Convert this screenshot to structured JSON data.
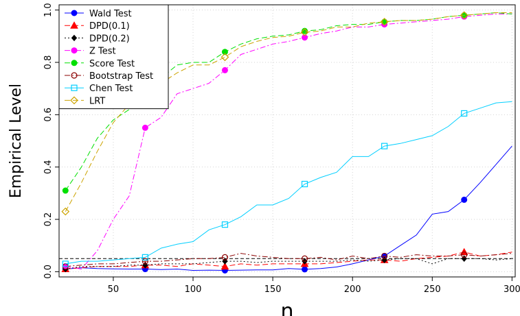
{
  "chart_data": {
    "type": "line",
    "xlabel": "n",
    "ylabel": "Empirical Level",
    "xlim": [
      16,
      302
    ],
    "ylim": [
      -0.02,
      1.02
    ],
    "xticks": [
      50,
      100,
      150,
      200,
      250,
      300
    ],
    "yticks": [
      0.0,
      0.2,
      0.4,
      0.6,
      0.8,
      1.0
    ],
    "ytick_labels": [
      "0.0",
      "0.2",
      "0.4",
      "0.6",
      "0.8",
      "1.0"
    ],
    "grid": true,
    "reference_line": 0.05,
    "legend_position": "top-left",
    "x": [
      20,
      30,
      40,
      50,
      60,
      70,
      80,
      90,
      100,
      110,
      120,
      130,
      140,
      150,
      160,
      170,
      180,
      190,
      200,
      210,
      220,
      230,
      240,
      250,
      260,
      270,
      280,
      290,
      300
    ],
    "marker_x": [
      20,
      70,
      120,
      170,
      220,
      270
    ],
    "series": [
      {
        "name": "Wald Test",
        "color": "#0000ff",
        "dash": "solid",
        "marker": "filled-circle",
        "values": [
          0.01,
          0.015,
          0.012,
          0.011,
          0.01,
          0.01,
          0.008,
          0.01,
          0.005,
          0.006,
          0.005,
          0.006,
          0.007,
          0.007,
          0.012,
          0.009,
          0.012,
          0.018,
          0.03,
          0.045,
          0.06,
          0.1,
          0.14,
          0.22,
          0.23,
          0.275,
          0.34,
          0.41,
          0.48
        ]
      },
      {
        "name": "DPD(0.1)",
        "color": "#ff0000",
        "dash": "8,4",
        "marker": "filled-triangle",
        "values": [
          0.01,
          0.015,
          0.02,
          0.02,
          0.02,
          0.025,
          0.025,
          0.02,
          0.03,
          0.025,
          0.02,
          0.03,
          0.025,
          0.03,
          0.03,
          0.03,
          0.03,
          0.035,
          0.04,
          0.045,
          0.045,
          0.04,
          0.05,
          0.055,
          0.06,
          0.075,
          0.06,
          0.065,
          0.075
        ]
      },
      {
        "name": "DPD(0.2)",
        "color": "#000000",
        "dash": "2,3",
        "marker": "filled-diamond",
        "values": [
          0.01,
          0.02,
          0.02,
          0.02,
          0.025,
          0.025,
          0.03,
          0.03,
          0.03,
          0.035,
          0.04,
          0.04,
          0.035,
          0.04,
          0.04,
          0.04,
          0.04,
          0.04,
          0.045,
          0.04,
          0.045,
          0.05,
          0.05,
          0.03,
          0.05,
          0.05,
          0.05,
          0.045,
          0.05
        ]
      },
      {
        "name": "Z Test",
        "color": "#ff00ff",
        "dash": "8,3,2,3",
        "marker": "filled-circle",
        "values": [
          0.02,
          0.01,
          0.08,
          0.2,
          0.29,
          0.55,
          0.59,
          0.68,
          0.7,
          0.72,
          0.77,
          0.83,
          0.85,
          0.87,
          0.88,
          0.895,
          0.91,
          0.92,
          0.935,
          0.935,
          0.945,
          0.95,
          0.955,
          0.96,
          0.965,
          0.975,
          0.98,
          0.985,
          0.985
        ]
      },
      {
        "name": "Score Test",
        "color": "#00e000",
        "dash": "8,4",
        "marker": "filled-circle",
        "values": [
          0.31,
          0.4,
          0.51,
          0.58,
          0.62,
          0.72,
          0.74,
          0.79,
          0.8,
          0.8,
          0.84,
          0.87,
          0.89,
          0.9,
          0.905,
          0.92,
          0.925,
          0.94,
          0.945,
          0.945,
          0.955,
          0.96,
          0.96,
          0.965,
          0.975,
          0.98,
          0.985,
          0.99,
          0.985
        ]
      },
      {
        "name": "Bootstrap Test",
        "color": "#8b0000",
        "dash": "8,3,2,3",
        "marker": "open-circle",
        "values": [
          0.02,
          0.025,
          0.03,
          0.03,
          0.035,
          0.04,
          0.04,
          0.045,
          0.05,
          0.05,
          0.055,
          0.07,
          0.06,
          0.055,
          0.05,
          0.05,
          0.055,
          0.045,
          0.06,
          0.05,
          0.06,
          0.055,
          0.065,
          0.06,
          0.06,
          0.065,
          0.06,
          0.065,
          0.07
        ]
      },
      {
        "name": "Chen Test",
        "color": "#00cfff",
        "dash": "solid",
        "marker": "open-square",
        "values": [
          0.03,
          0.04,
          0.04,
          0.045,
          0.05,
          0.055,
          0.09,
          0.105,
          0.115,
          0.16,
          0.18,
          0.21,
          0.255,
          0.255,
          0.28,
          0.335,
          0.36,
          0.38,
          0.44,
          0.44,
          0.48,
          0.49,
          0.505,
          0.52,
          0.555,
          0.605,
          0.625,
          0.645,
          0.65
        ]
      },
      {
        "name": "LRT",
        "color": "#cca300",
        "dash": "8,4",
        "marker": "open-diamond",
        "values": [
          0.23,
          0.34,
          0.46,
          0.57,
          0.64,
          0.71,
          0.72,
          0.76,
          0.79,
          0.79,
          0.82,
          0.86,
          0.88,
          0.895,
          0.9,
          0.915,
          0.92,
          0.935,
          0.935,
          0.95,
          0.955,
          0.96,
          0.96,
          0.965,
          0.975,
          0.98,
          0.985,
          0.99,
          0.99
        ]
      }
    ]
  }
}
